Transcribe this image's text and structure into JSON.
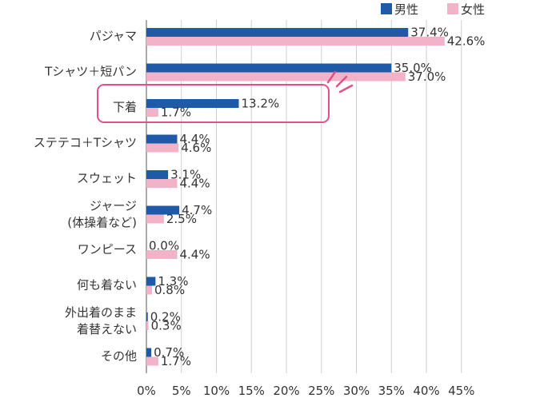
{
  "chart_data": {
    "type": "bar",
    "orientation": "horizontal",
    "categories": [
      [
        "パジャマ"
      ],
      [
        "Tシャツ＋短パン"
      ],
      [
        "下着"
      ],
      [
        "ステテコ＋Tシャツ"
      ],
      [
        "スウェット"
      ],
      [
        "ジャージ",
        "(体操着など)"
      ],
      [
        "ワンピース"
      ],
      [
        "何も着ない"
      ],
      [
        "外出着のまま",
        "着替えない"
      ],
      [
        "その他"
      ]
    ],
    "series": [
      {
        "name": "男性",
        "color": "#1e5aa8",
        "values": [
          37.4,
          35.0,
          13.2,
          4.4,
          3.1,
          4.7,
          0.0,
          1.3,
          0.2,
          0.7
        ],
        "labels": [
          "37.4%",
          "35.0%",
          "13.2%",
          "4.4%",
          "3.1%",
          "4.7%",
          "0.0%",
          "1.3%",
          "0.2%",
          "0.7%"
        ]
      },
      {
        "name": "女性",
        "color": "#f2b3c9",
        "values": [
          42.6,
          37.0,
          1.7,
          4.6,
          4.4,
          2.5,
          4.4,
          0.8,
          0.3,
          1.7
        ],
        "labels": [
          "42.6%",
          "37.0%",
          "1.7%",
          "4.6%",
          "4.4%",
          "2.5%",
          "4.4%",
          "0.8%",
          "0.3%",
          "1.7%"
        ]
      }
    ],
    "x_ticks": [
      "0%",
      "5%",
      "10%",
      "15%",
      "20%",
      "25%",
      "30%",
      "35%",
      "40%",
      "45%"
    ],
    "xlim": [
      0,
      45
    ],
    "grid": true,
    "legend_position": "top-right",
    "highlight": {
      "category_index": 2,
      "color": "#e0508a"
    }
  }
}
